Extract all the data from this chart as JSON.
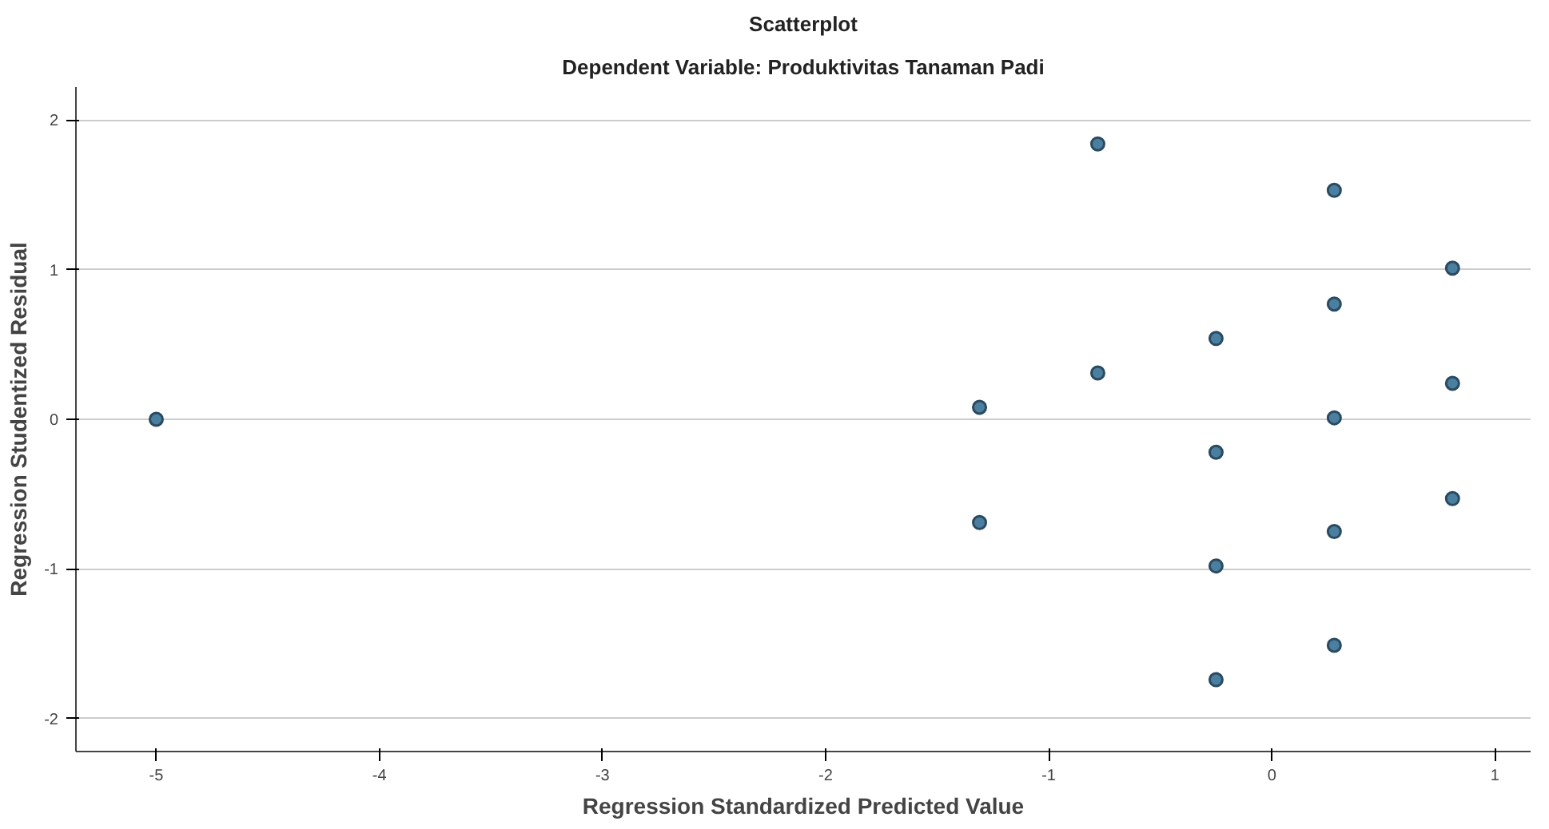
{
  "chart_data": {
    "type": "scatter",
    "title": "Scatterplot",
    "subtitle": "Dependent Variable: Produktivitas Tanaman Padi",
    "xlabel": "Regression Standardized Predicted Value",
    "ylabel": "Regression Studentized Residual",
    "x": [
      -5,
      -0.78,
      0.28,
      0.81,
      0.28,
      -0.25,
      -0.78,
      -1.31,
      0.81,
      0.28,
      -0.25,
      0.81,
      -1.31,
      0.28,
      -0.25,
      0.28,
      -0.25
    ],
    "series": [
      {
        "color": "#4a7fa0",
        "values": [
          0,
          1.84,
          1.53,
          1.01,
          0.77,
          0.54,
          0.31,
          0.08,
          0.24,
          0.01,
          -0.22,
          -0.53,
          -0.69,
          -0.75,
          -0.98,
          -1.51,
          -1.74
        ]
      }
    ],
    "xlim": [
      -5.36,
      1.16
    ],
    "ylim": [
      -2.22,
      2.22
    ],
    "xticks": [
      -5,
      -4,
      -3,
      -2,
      -1,
      0,
      1
    ],
    "yticks": [
      -2,
      -1,
      0,
      1,
      2
    ],
    "grid": "y",
    "marker": "circle"
  }
}
